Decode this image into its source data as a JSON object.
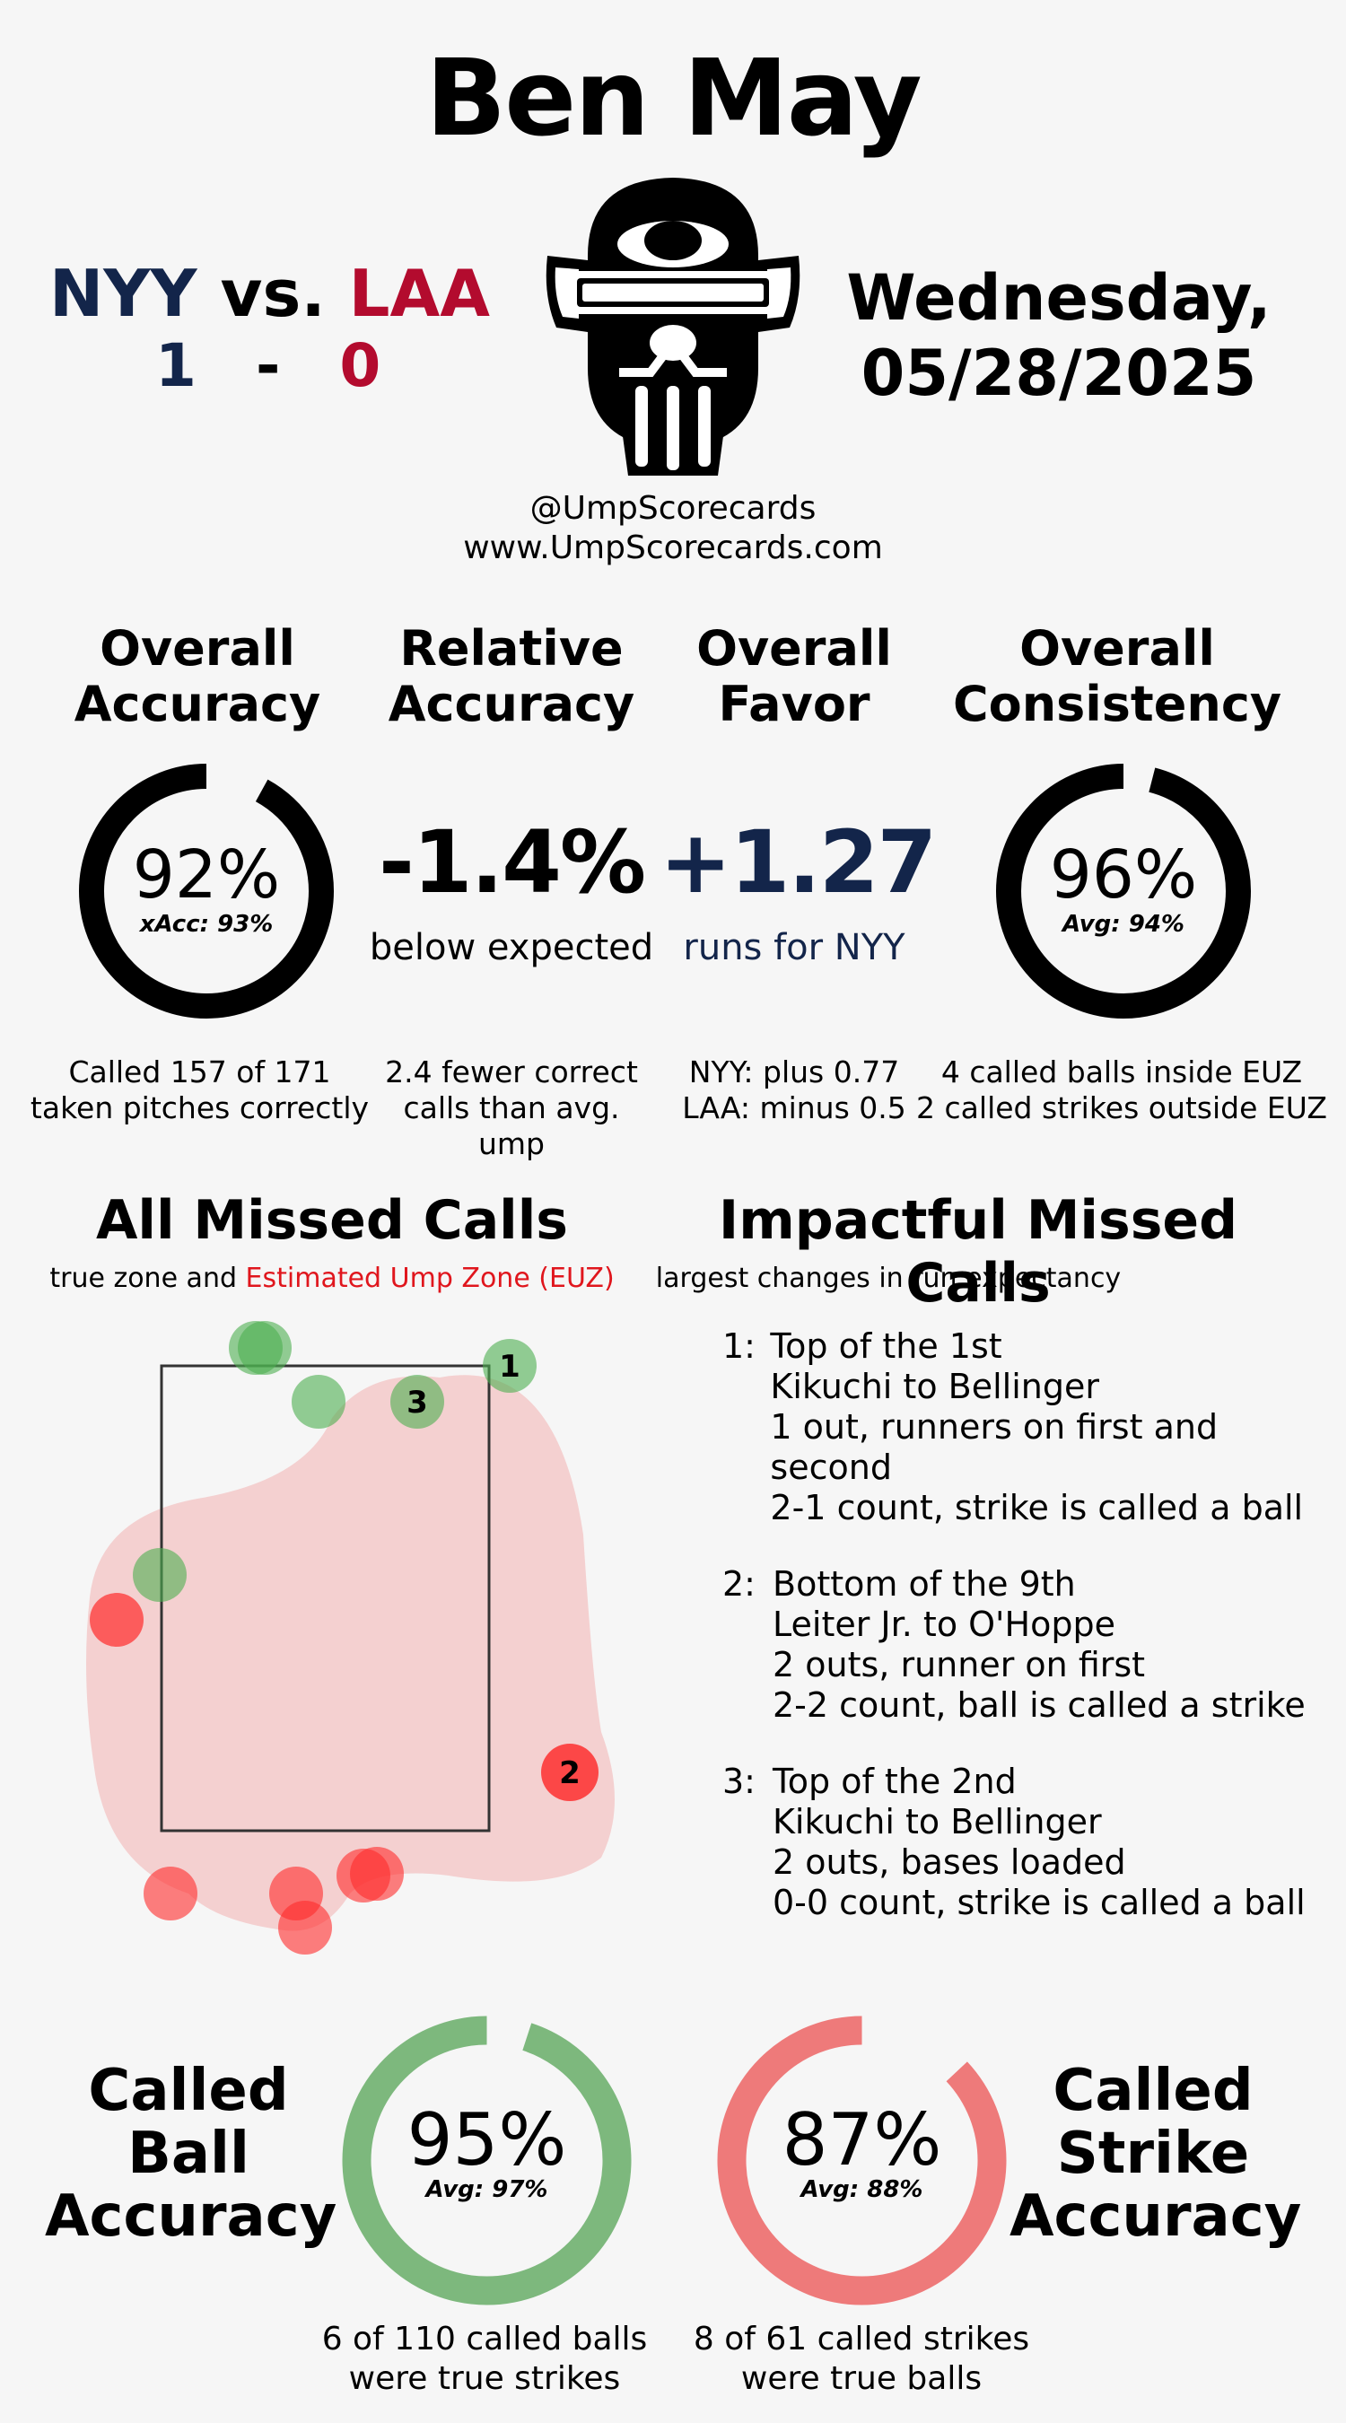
{
  "umpire_name": "Ben May",
  "matchup": {
    "away_team": "NYY",
    "vs": "vs.",
    "home_team": "LAA",
    "away_score": "1",
    "dash": "-",
    "home_score": "0",
    "away_color": "#13254a",
    "home_color": "#b30b2e"
  },
  "date": {
    "day": "Wednesday,",
    "date": "05/28/2025"
  },
  "handles": {
    "social": "@UmpScorecards",
    "website": "www.UmpScorecards.com"
  },
  "metrics": {
    "overall_accuracy": {
      "title_line1": "Overall",
      "title_line2": "Accuracy",
      "value": "92%",
      "fraction": 0.92,
      "sub": "xAcc: 93%",
      "caption_line1": "Called 157 of 171",
      "caption_line2": "taken pitches correctly"
    },
    "relative_accuracy": {
      "title_line1": "Relative",
      "title_line2": "Accuracy",
      "value": "-1.4%",
      "sub": "below expected",
      "caption_line1": "2.4 fewer correct",
      "caption_line2": "calls than avg. ump"
    },
    "overall_favor": {
      "title_line1": "Overall",
      "title_line2": "Favor",
      "value": "+1.27",
      "sub": "runs for NYY",
      "caption_line1": "NYY: plus 0.77",
      "caption_line2": "LAA: minus 0.5",
      "color": "#13254a"
    },
    "overall_consistency": {
      "title_line1": "Overall",
      "title_line2": "Consistency",
      "value": "96%",
      "fraction": 0.96,
      "sub": "Avg: 94%",
      "caption_line1": "4 called balls inside EUZ",
      "caption_line2": "2 called strikes outside EUZ"
    }
  },
  "missed_calls": {
    "title": "All Missed Calls",
    "subtitle_prefix": "true zone and",
    "subtitle_euz": "Estimated Ump Zone (EUZ)",
    "euz_color": "#e0161d",
    "labels": [
      "1",
      "2",
      "3"
    ]
  },
  "impactful": {
    "title": "Impactful Missed Calls",
    "subtitle": "largest changes in run expectancy",
    "items": [
      {
        "num": "1:",
        "lines": [
          "Top of the 1st",
          "Kikuchi to Bellinger",
          "1 out, runners on first and second",
          "2-1 count, strike is called a ball"
        ]
      },
      {
        "num": "2:",
        "lines": [
          "Bottom of the 9th",
          "Leiter Jr. to O'Hoppe",
          "2 outs, runner on first",
          "2-2 count, ball is called a strike"
        ]
      },
      {
        "num": "3:",
        "lines": [
          "Top of the 2nd",
          "Kikuchi to Bellinger",
          "2 outs, bases loaded",
          "0-0 count, strike is called a ball"
        ]
      }
    ]
  },
  "called_ball": {
    "title_line1": "Called",
    "title_line2": "Ball",
    "title_line3": "Accuracy",
    "value": "95%",
    "fraction": 0.95,
    "avg": "Avg: 97%",
    "caption_line1": "6 of 110 called balls",
    "caption_line2": "were true strikes",
    "color": "#7db87d"
  },
  "called_strike": {
    "title_line1": "Called",
    "title_line2": "Strike",
    "title_line3": "Accuracy",
    "value": "87%",
    "fraction": 0.87,
    "avg": "Avg: 88%",
    "caption_line1": "8 of 61 called strikes",
    "caption_line2": "were true balls",
    "color": "#ee7a7a"
  }
}
